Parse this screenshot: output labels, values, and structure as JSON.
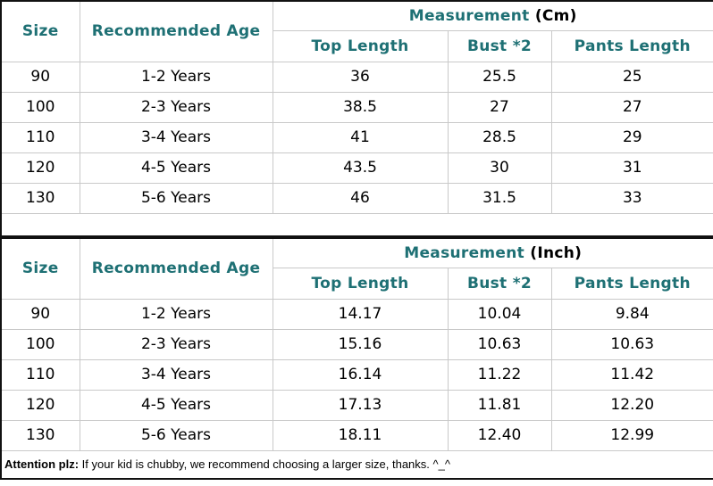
{
  "colors": {
    "header_text": "#1e7074",
    "grid_line": "#c9c9c9",
    "outer_border": "#111111",
    "background": "#ffffff"
  },
  "chart_data": [
    {
      "type": "table",
      "title": "Measurement (Cm)",
      "title_main": "Measurement",
      "title_unit": "(Cm)",
      "size_header": "Size",
      "age_header": "Recommended Age",
      "sub_headers": [
        "Top Length",
        "Bust *2",
        "Pants Length"
      ],
      "columns": [
        "Size",
        "Recommended Age",
        "Top Length",
        "Bust *2",
        "Pants Length"
      ],
      "rows": [
        [
          "90",
          "1-2 Years",
          "36",
          "25.5",
          "25"
        ],
        [
          "100",
          "2-3 Years",
          "38.5",
          "27",
          "27"
        ],
        [
          "110",
          "3-4 Years",
          "41",
          "28.5",
          "29"
        ],
        [
          "120",
          "4-5 Years",
          "43.5",
          "30",
          "31"
        ],
        [
          "130",
          "5-6 Years",
          "46",
          "31.5",
          "33"
        ]
      ]
    },
    {
      "type": "table",
      "title": "Measurement (Inch)",
      "title_main": "Measurement",
      "title_unit": "(Inch)",
      "size_header": "Size",
      "age_header": "Recommended Age",
      "sub_headers": [
        "Top Length",
        "Bust *2",
        "Pants Length"
      ],
      "columns": [
        "Size",
        "Recommended Age",
        "Top Length",
        "Bust *2",
        "Pants Length"
      ],
      "rows": [
        [
          "90",
          "1-2 Years",
          "14.17",
          "10.04",
          "9.84"
        ],
        [
          "100",
          "2-3 Years",
          "15.16",
          "10.63",
          "10.63"
        ],
        [
          "110",
          "3-4 Years",
          "16.14",
          "11.22",
          "11.42"
        ],
        [
          "120",
          "4-5 Years",
          "17.13",
          "11.81",
          "12.20"
        ],
        [
          "130",
          "5-6 Years",
          "18.11",
          "12.40",
          "12.99"
        ]
      ]
    }
  ],
  "note": {
    "label": "Attention plz:",
    "text": "If your kid is chubby, we recommend choosing a larger size, thanks. ^_^"
  }
}
